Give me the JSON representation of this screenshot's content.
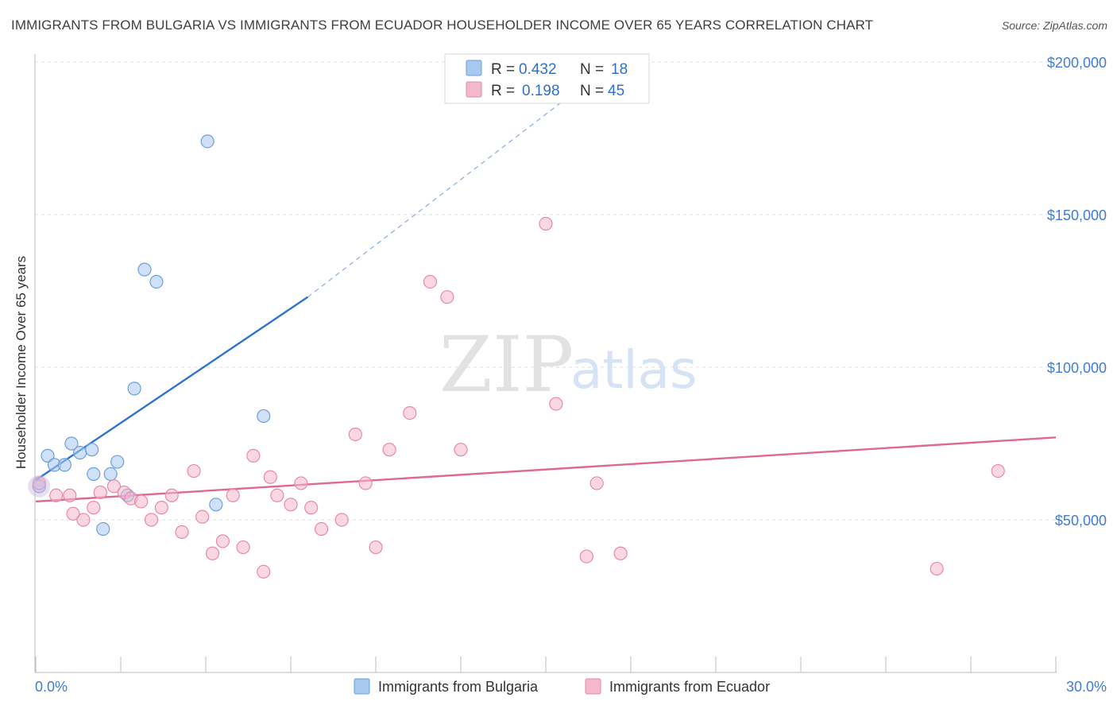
{
  "header": {
    "title": "IMMIGRANTS FROM BULGARIA VS IMMIGRANTS FROM ECUADOR HOUSEHOLDER INCOME OVER 65 YEARS CORRELATION CHART",
    "source": "Source: ZipAtlas.com"
  },
  "watermark": {
    "zip": "ZIP",
    "atlas": "atlas"
  },
  "legend": {
    "rows": [
      {
        "r_label": "R =",
        "r_value": "0.432",
        "n_label": "N =",
        "n_value": "18",
        "color": "#a9c8f0"
      },
      {
        "r_label": "R =",
        "r_value": "0.198",
        "n_label": "N =",
        "n_value": "45",
        "color": "#f5b8cb"
      }
    ]
  },
  "bottom_legend": {
    "items": [
      {
        "label": "Immigrants from Bulgaria",
        "color": "#a9c8f0"
      },
      {
        "label": "Immigrants from Ecuador",
        "color": "#f5b8cb"
      }
    ]
  },
  "chart_data": {
    "type": "scatter",
    "title": "IMMIGRANTS FROM BULGARIA VS IMMIGRANTS FROM ECUADOR HOUSEHOLDER INCOME OVER 65 YEARS CORRELATION CHART",
    "xlabel": "",
    "ylabel": "Householder Income Over 65 years",
    "xlim": [
      0,
      30
    ],
    "ylim": [
      0,
      205000
    ],
    "x_tick_labels": [
      "0.0%",
      "30.0%"
    ],
    "y_ticks": [
      50000,
      100000,
      150000,
      200000
    ],
    "y_tick_labels": [
      "$50,000",
      "$100,000",
      "$150,000",
      "$200,000"
    ],
    "grid": true,
    "series": [
      {
        "name": "Immigrants from Bulgaria",
        "color": "#a9c8f0",
        "stroke": "#6a9fe0",
        "points": [
          [
            0.1,
            61000
          ],
          [
            0.35,
            71000
          ],
          [
            0.55,
            68000
          ],
          [
            0.85,
            68000
          ],
          [
            1.05,
            75000
          ],
          [
            1.3,
            72000
          ],
          [
            1.65,
            73000
          ],
          [
            1.7,
            65000
          ],
          [
            1.98,
            47000
          ],
          [
            2.2,
            65000
          ],
          [
            2.4,
            69000
          ],
          [
            2.7,
            58000
          ],
          [
            2.9,
            93000
          ],
          [
            3.2,
            132000
          ],
          [
            3.55,
            128000
          ],
          [
            5.05,
            174000
          ],
          [
            5.3,
            55000
          ],
          [
            6.7,
            84000
          ]
        ],
        "trend": {
          "x0": 0,
          "y0": 63000,
          "x1": 8,
          "y1": 123000,
          "dash_to_x": 17,
          "dash_to_y": 200000
        }
      },
      {
        "name": "Immigrants from Ecuador",
        "color": "#f5b8cb",
        "stroke": "#e889a8",
        "points": [
          [
            0.1,
            62000
          ],
          [
            0.6,
            58000
          ],
          [
            1.0,
            58000
          ],
          [
            1.1,
            52000
          ],
          [
            1.4,
            50000
          ],
          [
            1.7,
            54000
          ],
          [
            1.9,
            59000
          ],
          [
            2.3,
            61000
          ],
          [
            2.6,
            59000
          ],
          [
            2.8,
            57000
          ],
          [
            3.1,
            56000
          ],
          [
            3.4,
            50000
          ],
          [
            3.7,
            54000
          ],
          [
            4.0,
            58000
          ],
          [
            4.3,
            46000
          ],
          [
            4.65,
            66000
          ],
          [
            4.9,
            51000
          ],
          [
            5.2,
            39000
          ],
          [
            5.5,
            43000
          ],
          [
            5.8,
            58000
          ],
          [
            6.1,
            41000
          ],
          [
            6.4,
            71000
          ],
          [
            6.7,
            33000
          ],
          [
            6.9,
            64000
          ],
          [
            7.1,
            58000
          ],
          [
            7.5,
            55000
          ],
          [
            7.8,
            62000
          ],
          [
            8.1,
            54000
          ],
          [
            8.4,
            47000
          ],
          [
            9.0,
            50000
          ],
          [
            9.4,
            78000
          ],
          [
            9.7,
            62000
          ],
          [
            10.0,
            41000
          ],
          [
            10.4,
            73000
          ],
          [
            11.0,
            85000
          ],
          [
            11.6,
            128000
          ],
          [
            12.1,
            123000
          ],
          [
            12.5,
            73000
          ],
          [
            15.0,
            147000
          ],
          [
            15.3,
            88000
          ],
          [
            16.2,
            38000
          ],
          [
            16.5,
            62000
          ],
          [
            17.2,
            39000
          ],
          [
            26.5,
            34000
          ],
          [
            28.3,
            66000
          ]
        ],
        "trend": {
          "x0": 0,
          "y0": 56000,
          "x1": 30,
          "y1": 77000
        }
      }
    ]
  }
}
